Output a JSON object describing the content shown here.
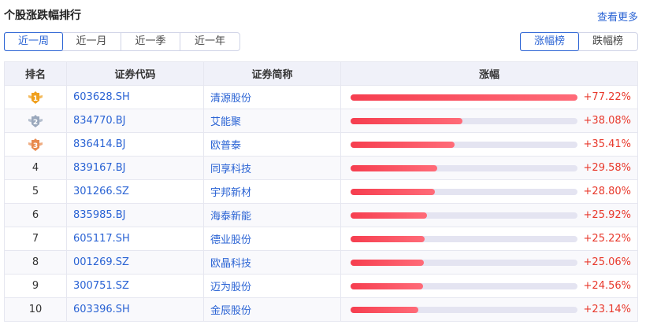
{
  "header": {
    "title": "个股涨跌幅排行",
    "more_link": "查看更多"
  },
  "period_tabs": [
    {
      "label": "近一周",
      "active": true
    },
    {
      "label": "近一月",
      "active": false
    },
    {
      "label": "近一季",
      "active": false
    },
    {
      "label": "近一年",
      "active": false
    }
  ],
  "rank_toggle": [
    {
      "label": "涨幅榜",
      "active": true
    },
    {
      "label": "跌幅榜",
      "active": false
    }
  ],
  "colors": {
    "accent": "#2a63d4",
    "up": "#e8382b",
    "bar": "#f63e4f",
    "gold": "#f0a01e",
    "silver": "#9aa8bc",
    "bronze": "#e88a4e"
  },
  "table": {
    "columns": [
      "排名",
      "证券代码",
      "证券简称",
      "涨幅"
    ],
    "max_change": 77.22,
    "rows": [
      {
        "rank": "1",
        "medal": "gold",
        "code": "603628.SH",
        "name": "清源股份",
        "change": "+77.22%",
        "value": 77.22
      },
      {
        "rank": "2",
        "medal": "silver",
        "code": "834770.BJ",
        "name": "艾能聚",
        "change": "+38.08%",
        "value": 38.08
      },
      {
        "rank": "3",
        "medal": "bronze",
        "code": "836414.BJ",
        "name": "欧普泰",
        "change": "+35.41%",
        "value": 35.41
      },
      {
        "rank": "4",
        "code": "839167.BJ",
        "name": "同享科技",
        "change": "+29.58%",
        "value": 29.58
      },
      {
        "rank": "5",
        "code": "301266.SZ",
        "name": "宇邦新材",
        "change": "+28.80%",
        "value": 28.8
      },
      {
        "rank": "6",
        "code": "835985.BJ",
        "name": "海泰新能",
        "change": "+25.92%",
        "value": 25.92
      },
      {
        "rank": "7",
        "code": "605117.SH",
        "name": "德业股份",
        "change": "+25.22%",
        "value": 25.22
      },
      {
        "rank": "8",
        "code": "001269.SZ",
        "name": "欧晶科技",
        "change": "+25.06%",
        "value": 25.06
      },
      {
        "rank": "9",
        "code": "300751.SZ",
        "name": "迈为股份",
        "change": "+24.56%",
        "value": 24.56
      },
      {
        "rank": "10",
        "code": "603396.SH",
        "name": "金辰股份",
        "change": "+23.14%",
        "value": 23.14
      }
    ]
  }
}
